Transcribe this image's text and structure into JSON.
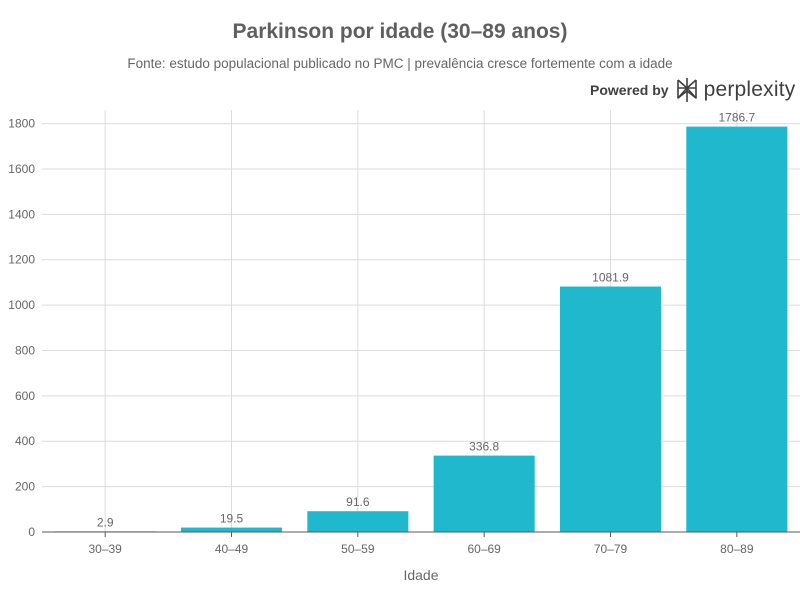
{
  "chart_data": {
    "type": "bar",
    "title": "Parkinson por idade (30–89 anos)",
    "subtitle": "Fonte: estudo populacional publicado no PMC | prevalência cresce fortemente com a idade",
    "categories": [
      "30–39",
      "40–49",
      "50–59",
      "60–69",
      "70–79",
      "80–89"
    ],
    "values": [
      2.9,
      19.5,
      91.6,
      336.8,
      1081.9,
      1786.7
    ],
    "value_labels": [
      "2.9",
      "19.5",
      "91.6",
      "336.8",
      "1081.9",
      "1786.7"
    ],
    "xlabel": "Idade",
    "ylabel": "",
    "ylim": [
      0,
      1860
    ],
    "yticks": [
      0,
      200,
      400,
      600,
      800,
      1000,
      1200,
      1400,
      1600,
      1800
    ],
    "grid": true,
    "bar_color": "#1fb8cd"
  },
  "branding": {
    "powered_by": "Powered by",
    "name": "perplexity",
    "icon": "perplexity-logo-icon"
  }
}
